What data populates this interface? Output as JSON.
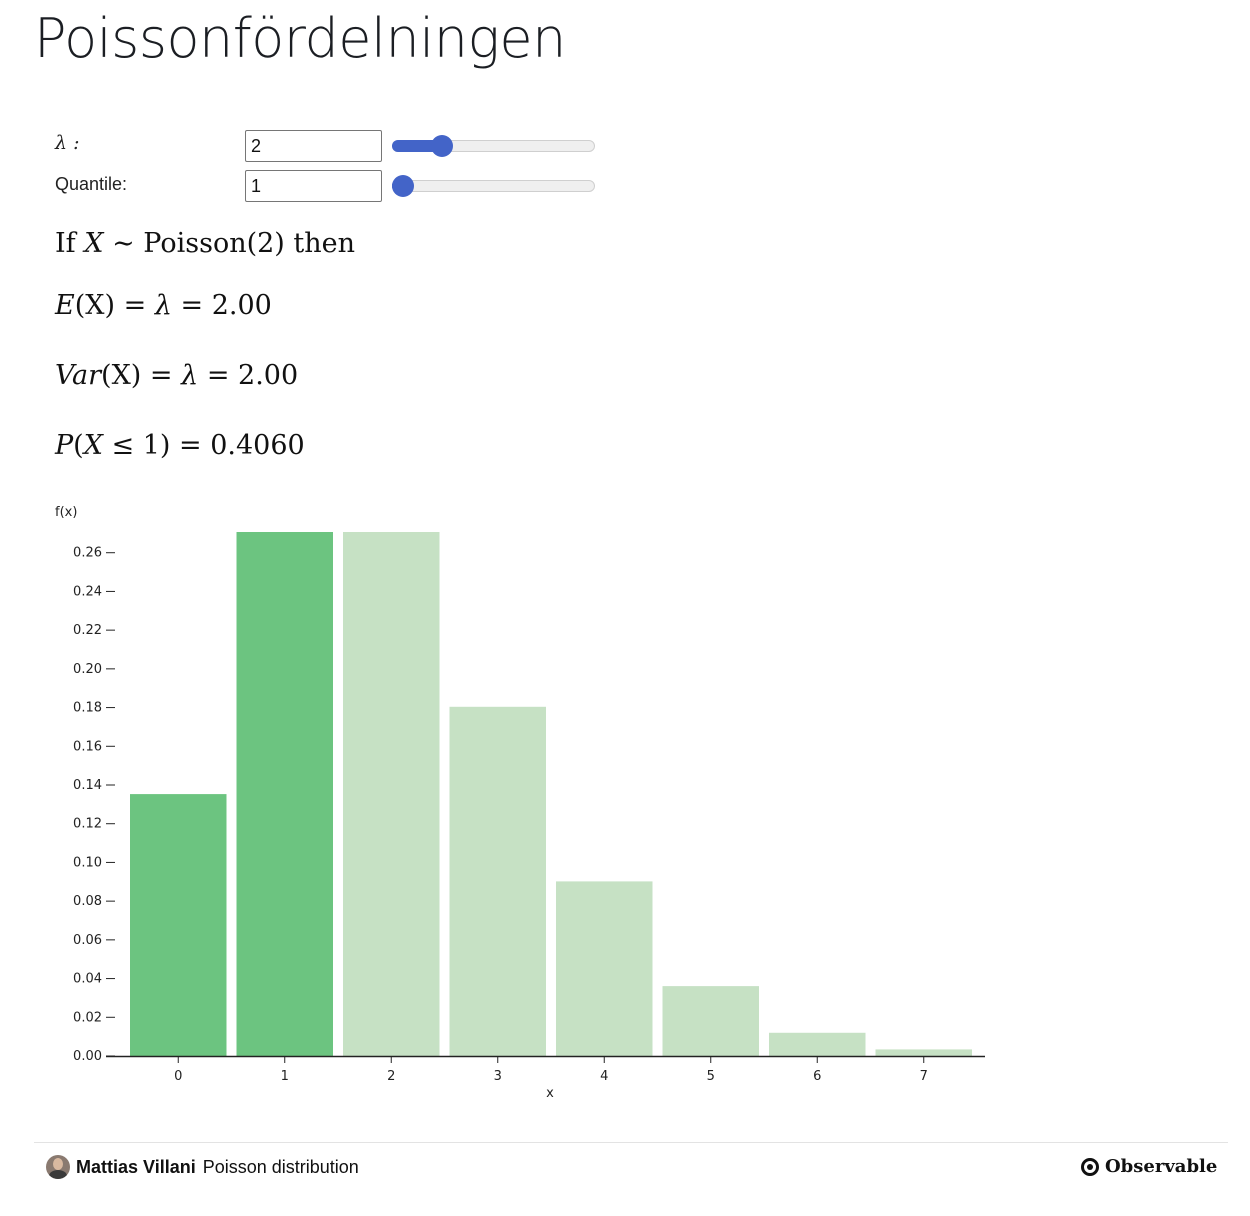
{
  "page": {
    "title": "Poissonfördelningen"
  },
  "controls": {
    "lambda": {
      "label": "λ :",
      "value": "2",
      "slider_fraction": 0.22
    },
    "quantile": {
      "label": "Quantile:",
      "value": "1",
      "slider_fraction": 0.0
    }
  },
  "formulas": {
    "line1": {
      "pre": "If ",
      "var": "X",
      "mid": " ∼ Poisson(2) then"
    },
    "mean": {
      "lhs": "E",
      "arg": "(X)",
      "op1": " = ",
      "sym": "λ",
      "rest": " = 2.00"
    },
    "variance": {
      "lhs": "Var",
      "arg": "(X)",
      "op1": " = ",
      "sym": "λ",
      "rest": " = 2.00"
    },
    "cdf": {
      "lhs": "P",
      "open": "(",
      "var": "X",
      "rest": " ≤ 1) = 0.4060"
    }
  },
  "colors": {
    "highlight": "#6cc480",
    "dim": "#c6e1c4",
    "slider": "#4364c8"
  },
  "chart_data": {
    "type": "bar",
    "ylabel": "f(x)",
    "xlabel": "x",
    "categories": [
      "0",
      "1",
      "2",
      "3",
      "4",
      "5",
      "6",
      "7"
    ],
    "values": [
      0.1353,
      0.2707,
      0.2707,
      0.1804,
      0.0902,
      0.0361,
      0.012,
      0.0034
    ],
    "highlighted_up_to": 1,
    "ylim": [
      0,
      0.2707
    ],
    "yticks": [
      0.0,
      0.02,
      0.04,
      0.06,
      0.08,
      0.1,
      0.12,
      0.14,
      0.16,
      0.18,
      0.2,
      0.22,
      0.24,
      0.26
    ],
    "ytick_labels": [
      "0.00",
      "0.02",
      "0.04",
      "0.06",
      "0.08",
      "0.10",
      "0.12",
      "0.14",
      "0.16",
      "0.18",
      "0.20",
      "0.22",
      "0.24",
      "0.26"
    ],
    "grid": false
  },
  "footer": {
    "author": "Mattias Villani",
    "notebook": "Poisson distribution",
    "brand": "Observable",
    "avatar_icon": "user-avatar",
    "logo_icon": "observable-logo"
  }
}
